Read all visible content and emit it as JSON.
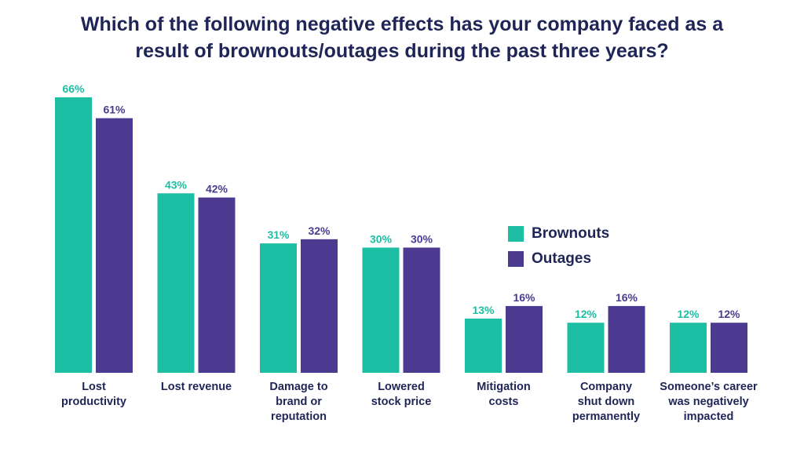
{
  "chart_data": {
    "type": "bar",
    "title_lines": [
      "Which of the following negative effects has your company faced as a",
      "result of brownouts/outages during the past three years?"
    ],
    "categories": [
      [
        "Lost",
        "productivity"
      ],
      [
        "Lost revenue"
      ],
      [
        "Damage to",
        "brand or",
        "reputation"
      ],
      [
        "Lowered",
        "stock price"
      ],
      [
        "Mitigation",
        "costs"
      ],
      [
        "Company",
        "shut down",
        "permanently"
      ],
      [
        "Someone’s career",
        "was negatively",
        "impacted"
      ]
    ],
    "series": [
      {
        "name": "Brownouts",
        "color": "#1cbfa3",
        "values": [
          66,
          43,
          31,
          30,
          13,
          12,
          12
        ],
        "labels": [
          "66%",
          "43%",
          "31%",
          "30%",
          "13%",
          "12%",
          "12%"
        ]
      },
      {
        "name": "Outages",
        "color": "#4b3a8f",
        "values": [
          61,
          42,
          32,
          30,
          16,
          16,
          12
        ],
        "labels": [
          "61%",
          "42%",
          "32%",
          "30%",
          "16%",
          "16%",
          "12%"
        ]
      }
    ],
    "ylim": [
      0,
      66
    ],
    "legend_position": "center-right",
    "label_color": "#1f2556"
  }
}
